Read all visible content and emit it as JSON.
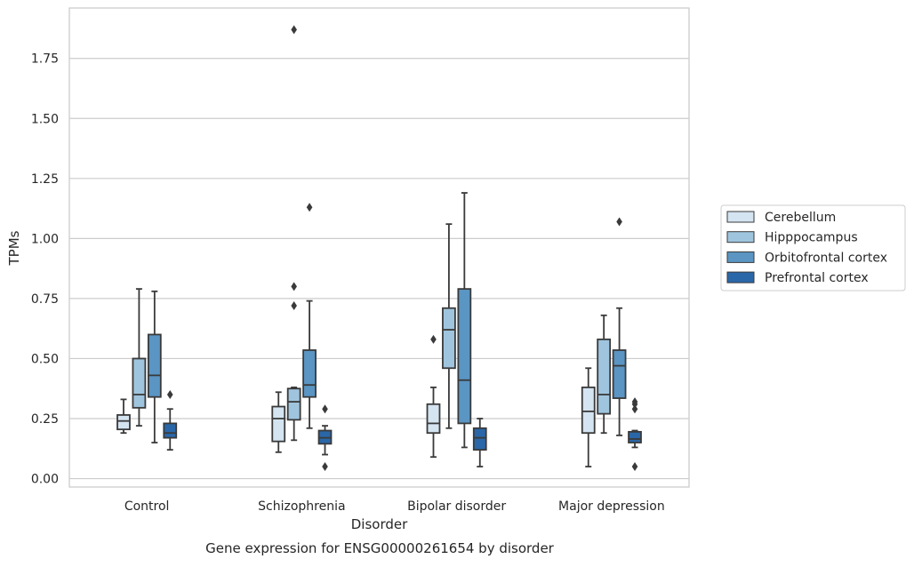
{
  "chart_data": {
    "type": "box",
    "title": "Gene expression for ENSG00000261654 by disorder",
    "xlabel": "Disorder",
    "ylabel": "TPMs",
    "ylim": [
      -0.035,
      1.96
    ],
    "yticks": [
      "0.00",
      "0.25",
      "0.50",
      "0.75",
      "1.00",
      "1.25",
      "1.50",
      "1.75"
    ],
    "categories": [
      "Control",
      "Schizophrenia",
      "Bipolar disorder",
      "Major depression"
    ],
    "grid": "horizontal",
    "legend_position": "right",
    "series": [
      {
        "name": "Cerebellum",
        "color": "#d4e4f1",
        "boxes": [
          {
            "whislo": 0.19,
            "q1": 0.205,
            "med": 0.24,
            "q3": 0.265,
            "whishi": 0.33,
            "fliers": []
          },
          {
            "whislo": 0.11,
            "q1": 0.155,
            "med": 0.25,
            "q3": 0.3,
            "whishi": 0.36,
            "fliers": []
          },
          {
            "whislo": 0.09,
            "q1": 0.19,
            "med": 0.23,
            "q3": 0.31,
            "whishi": 0.38,
            "fliers": [
              0.58
            ]
          },
          {
            "whislo": 0.05,
            "q1": 0.19,
            "med": 0.28,
            "q3": 0.38,
            "whishi": 0.46,
            "fliers": []
          }
        ]
      },
      {
        "name": "Hipppocampus",
        "color": "#9fc5de",
        "boxes": [
          {
            "whislo": 0.22,
            "q1": 0.295,
            "med": 0.35,
            "q3": 0.5,
            "whishi": 0.79,
            "fliers": []
          },
          {
            "whislo": 0.16,
            "q1": 0.245,
            "med": 0.32,
            "q3": 0.375,
            "whishi": 0.38,
            "fliers": [
              0.72,
              0.8,
              1.87
            ]
          },
          {
            "whislo": 0.21,
            "q1": 0.46,
            "med": 0.62,
            "q3": 0.71,
            "whishi": 1.06,
            "fliers": []
          },
          {
            "whislo": 0.19,
            "q1": 0.27,
            "med": 0.35,
            "q3": 0.58,
            "whishi": 0.68,
            "fliers": []
          }
        ]
      },
      {
        "name": "Orbitofrontal cortex",
        "color": "#5a95c3",
        "boxes": [
          {
            "whislo": 0.15,
            "q1": 0.34,
            "med": 0.43,
            "q3": 0.6,
            "whishi": 0.78,
            "fliers": []
          },
          {
            "whislo": 0.21,
            "q1": 0.34,
            "med": 0.39,
            "q3": 0.535,
            "whishi": 0.74,
            "fliers": [
              1.13
            ]
          },
          {
            "whislo": 0.13,
            "q1": 0.23,
            "med": 0.41,
            "q3": 0.79,
            "whishi": 1.19,
            "fliers": []
          },
          {
            "whislo": 0.18,
            "q1": 0.335,
            "med": 0.47,
            "q3": 0.535,
            "whishi": 0.71,
            "fliers": [
              1.07
            ]
          }
        ]
      },
      {
        "name": "Prefrontal cortex",
        "color": "#2a67a8",
        "boxes": [
          {
            "whislo": 0.12,
            "q1": 0.17,
            "med": 0.19,
            "q3": 0.23,
            "whishi": 0.29,
            "fliers": [
              0.35
            ]
          },
          {
            "whislo": 0.1,
            "q1": 0.145,
            "med": 0.17,
            "q3": 0.2,
            "whishi": 0.22,
            "fliers": [
              0.05,
              0.29
            ]
          },
          {
            "whislo": 0.05,
            "q1": 0.12,
            "med": 0.17,
            "q3": 0.21,
            "whishi": 0.25,
            "fliers": []
          },
          {
            "whislo": 0.13,
            "q1": 0.15,
            "med": 0.165,
            "q3": 0.195,
            "whishi": 0.2,
            "fliers": [
              0.05,
              0.29,
              0.31,
              0.32
            ]
          }
        ]
      }
    ]
  }
}
